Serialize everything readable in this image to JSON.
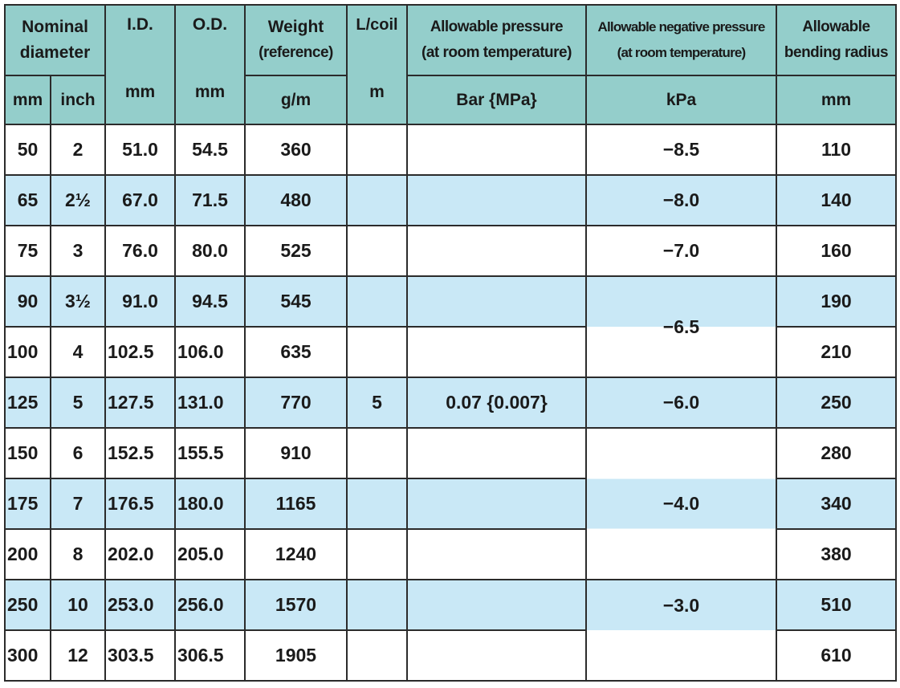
{
  "headers": {
    "nominal_diameter": [
      "Nominal",
      "diameter"
    ],
    "id": "I.D.",
    "od": "O.D.",
    "weight": [
      "Weight",
      "(reference)"
    ],
    "l_coil": "L/coil",
    "allowable_pressure": [
      "Allowable pressure",
      "(at room temperature)"
    ],
    "allowable_negative_pressure": [
      "Allowable negative pressure",
      "(at room temperature)"
    ],
    "allowable_bending_radius": [
      "Allowable",
      "bending radius"
    ]
  },
  "units": {
    "nominal_mm": "mm",
    "nominal_inch": "inch",
    "id": "mm",
    "od": "mm",
    "weight": "g/m",
    "l_coil": "m",
    "pressure": "Bar {MPa}",
    "negative_pressure": "kPa",
    "bending_radius": "mm"
  },
  "rows": [
    {
      "mm": "50",
      "inch": "2",
      "id": "51.0",
      "od": "54.5",
      "weight": "360",
      "bend": "110"
    },
    {
      "mm": "65",
      "inch": "2½",
      "id": "67.0",
      "od": "71.5",
      "weight": "480",
      "bend": "140"
    },
    {
      "mm": "75",
      "inch": "3",
      "id": "76.0",
      "od": "80.0",
      "weight": "525",
      "bend": "160"
    },
    {
      "mm": "90",
      "inch": "3½",
      "id": "91.0",
      "od": "94.5",
      "weight": "545",
      "bend": "190"
    },
    {
      "mm": "100",
      "inch": "4",
      "id": "102.5",
      "od": "106.0",
      "weight": "635",
      "bend": "210"
    },
    {
      "mm": "125",
      "inch": "5",
      "id": "127.5",
      "od": "131.0",
      "weight": "770",
      "bend": "250"
    },
    {
      "mm": "150",
      "inch": "6",
      "id": "152.5",
      "od": "155.5",
      "weight": "910",
      "bend": "280"
    },
    {
      "mm": "175",
      "inch": "7",
      "id": "176.5",
      "od": "180.0",
      "weight": "1165",
      "bend": "340"
    },
    {
      "mm": "200",
      "inch": "8",
      "id": "202.0",
      "od": "205.0",
      "weight": "1240",
      "bend": "380"
    },
    {
      "mm": "250",
      "inch": "10",
      "id": "253.0",
      "od": "256.0",
      "weight": "1570",
      "bend": "510"
    },
    {
      "mm": "300",
      "inch": "12",
      "id": "303.5",
      "od": "306.5",
      "weight": "1905",
      "bend": "610"
    }
  ],
  "l_coil_value": "5",
  "pressure_value": "0.07 {0.007}",
  "negative_pressure_values": [
    "−8.5",
    "−8.0",
    "−7.0",
    "−6.5",
    "−6.0",
    "−4.0",
    "−3.0"
  ],
  "colors": {
    "header_bg": "#94cecb",
    "stripe_bg": "#c9e8f6",
    "border": "#2b2b2b"
  }
}
